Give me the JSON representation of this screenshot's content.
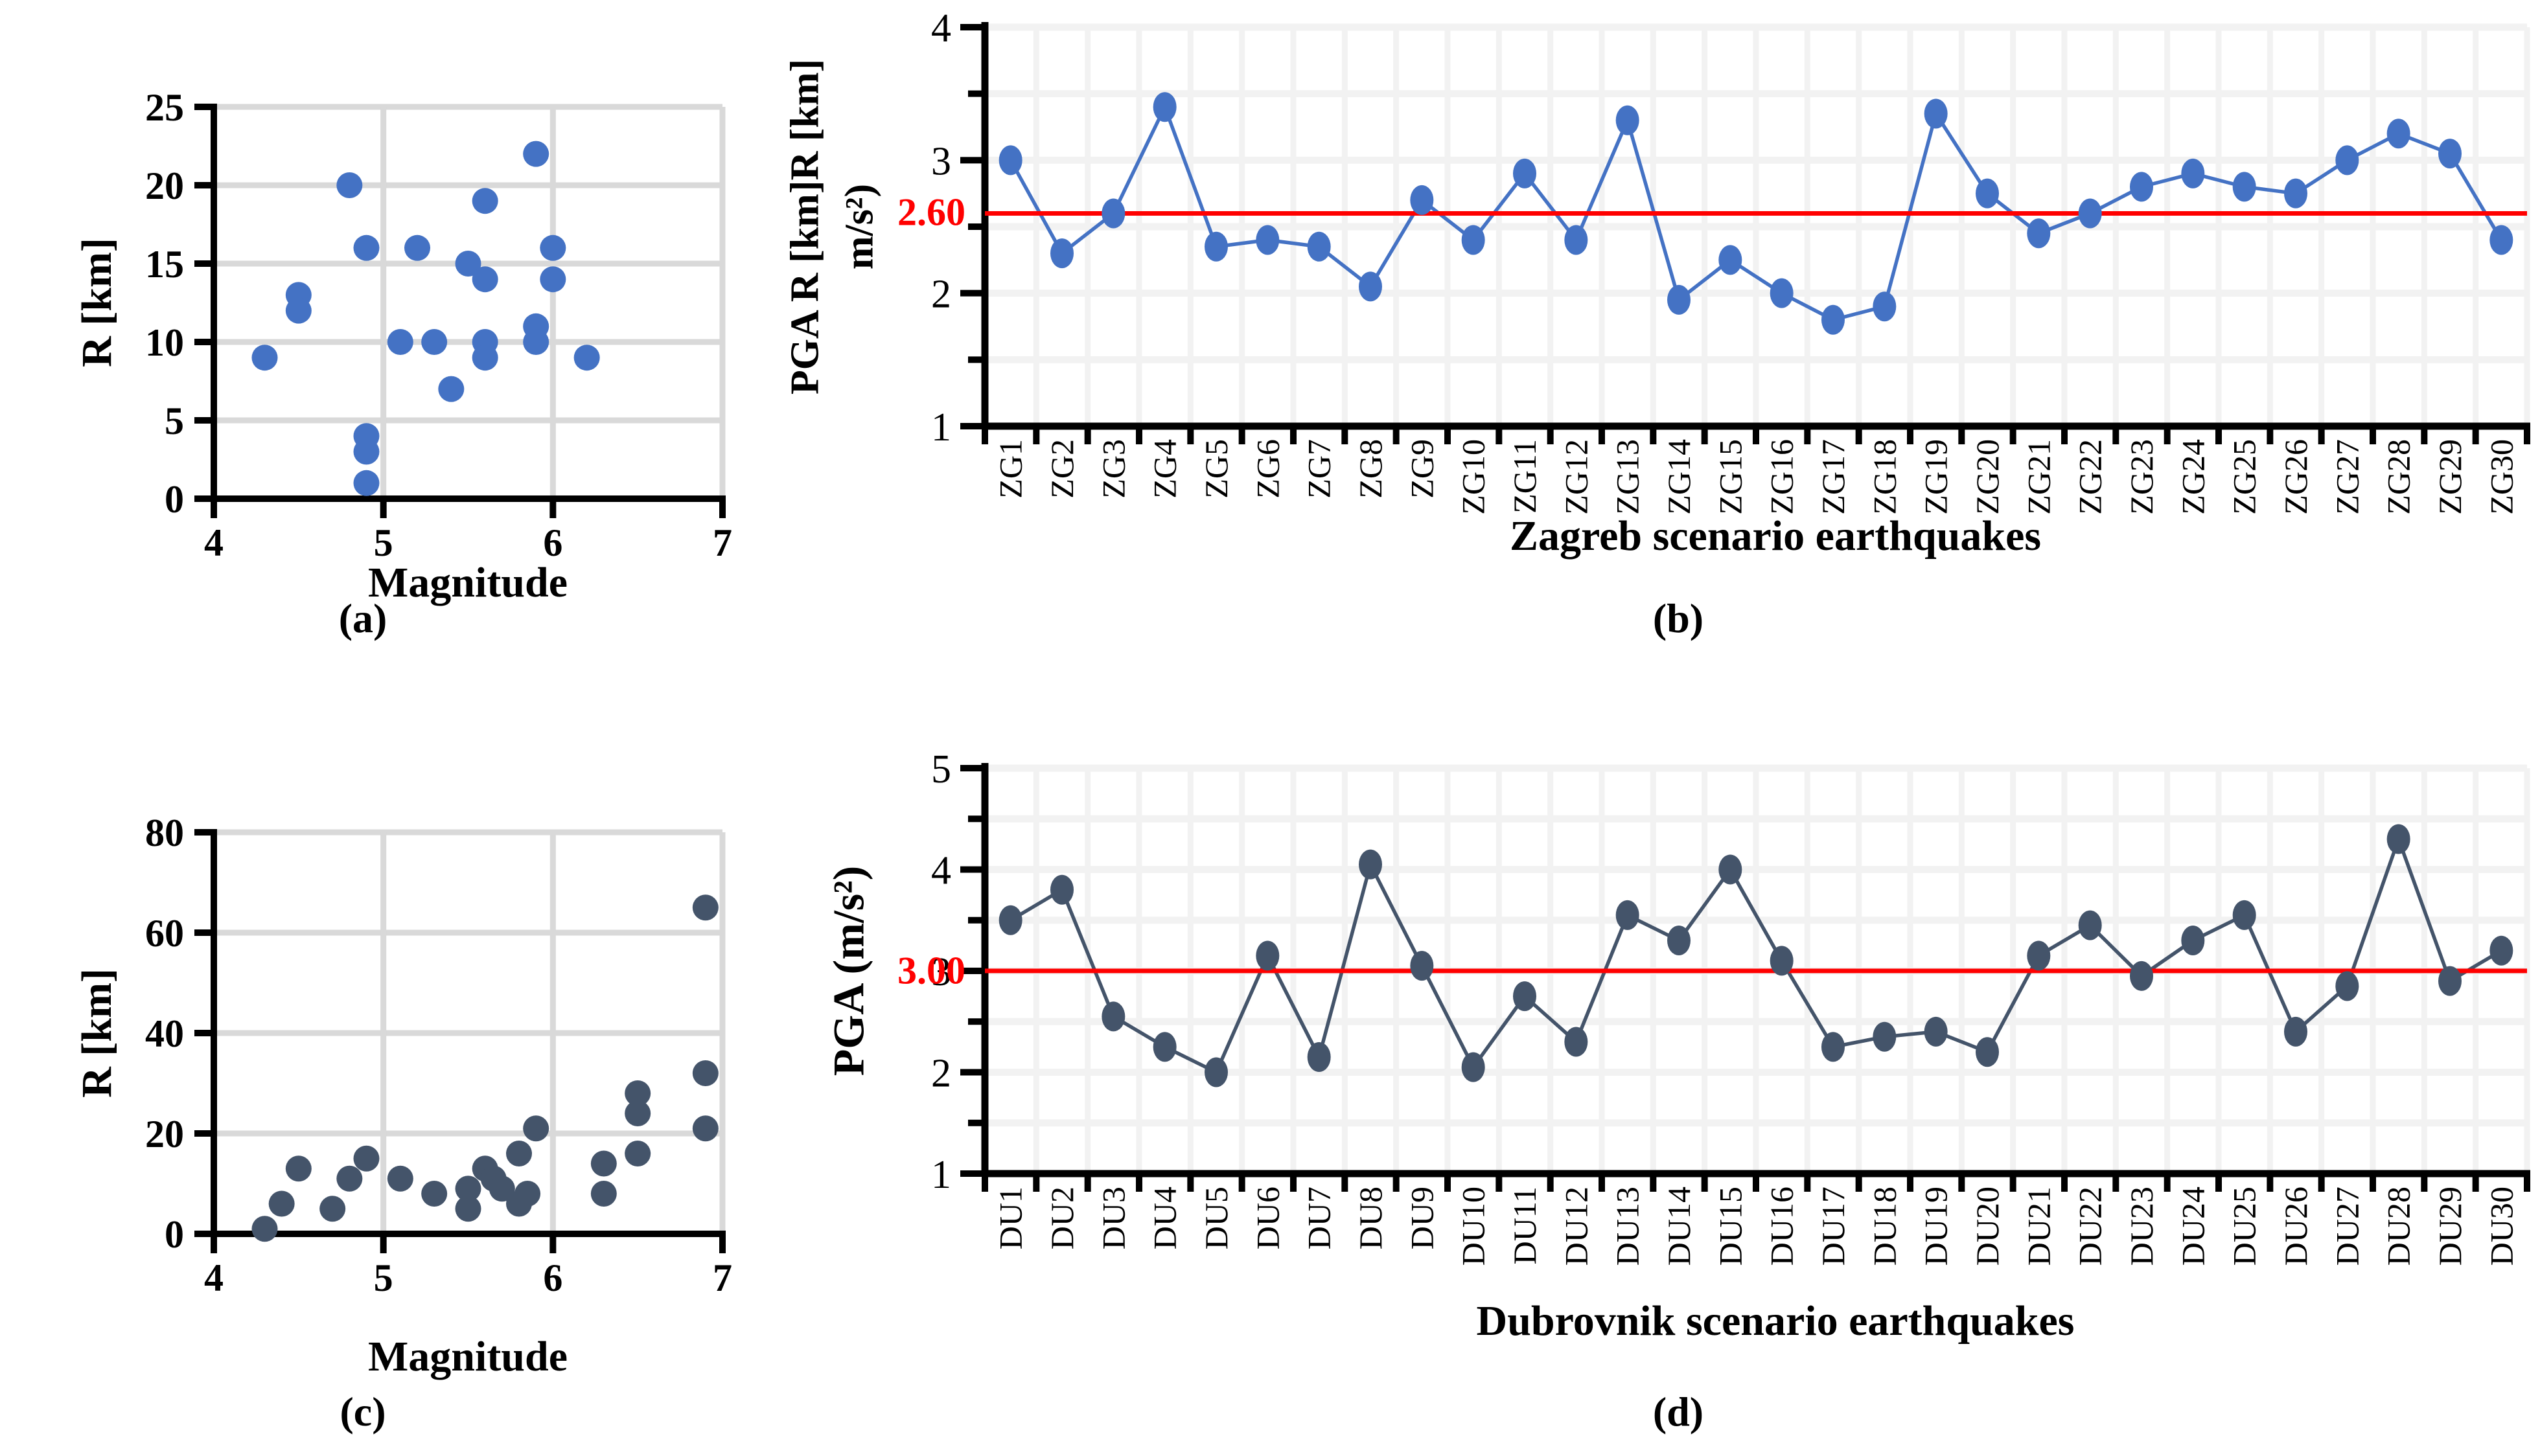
{
  "colors": {
    "blue": "#4472C4",
    "dark": "#44546A",
    "red": "#FF0000",
    "grid_scatter": "#D9D9D9",
    "grid_line": "#F2F2F2",
    "axis": "#000000"
  },
  "chart_data": [
    {
      "id": "a",
      "type": "scatter",
      "caption": "(a)",
      "xlabel": "Magnitude",
      "ylabel": "R [km]",
      "xlim": [
        4,
        7
      ],
      "ylim": [
        0,
        25
      ],
      "xticks": [
        4,
        5,
        6,
        7
      ],
      "yticks": [
        0,
        5,
        10,
        15,
        20,
        25
      ],
      "grid": "on",
      "marker_color": "#4472C4",
      "points": [
        [
          4.3,
          9
        ],
        [
          4.5,
          13
        ],
        [
          4.5,
          12
        ],
        [
          4.8,
          20
        ],
        [
          4.9,
          16
        ],
        [
          4.9,
          4
        ],
        [
          4.9,
          3
        ],
        [
          4.9,
          1
        ],
        [
          5.1,
          10
        ],
        [
          5.2,
          16
        ],
        [
          5.3,
          10
        ],
        [
          5.4,
          7
        ],
        [
          5.5,
          15
        ],
        [
          5.6,
          19
        ],
        [
          5.6,
          14
        ],
        [
          5.6,
          10
        ],
        [
          5.6,
          9
        ],
        [
          5.9,
          22
        ],
        [
          5.9,
          11
        ],
        [
          5.9,
          10
        ],
        [
          6.0,
          16
        ],
        [
          6.0,
          14
        ],
        [
          6.2,
          9
        ]
      ]
    },
    {
      "id": "b",
      "type": "line",
      "caption": "(b)",
      "xlabel": "Zagreb scenario earthquakes",
      "ylabel_line1": "PGA R [km]R [km]",
      "ylabel_line2": "m/s²)",
      "ylim": [
        1,
        4
      ],
      "yticks": [
        1,
        2,
        3,
        4
      ],
      "grid": "on",
      "line_color": "#4472C4",
      "threshold": 2.6,
      "threshold_label": "2.60",
      "categories": [
        "ZG1",
        "ZG2",
        "ZG3",
        "ZG4",
        "ZG5",
        "ZG6",
        "ZG7",
        "ZG8",
        "ZG9",
        "ZG10",
        "ZG11",
        "ZG12",
        "ZG13",
        "ZG14",
        "ZG15",
        "ZG16",
        "ZG17",
        "ZG18",
        "ZG19",
        "ZG20",
        "ZG21",
        "ZG22",
        "ZG23",
        "ZG24",
        "ZG25",
        "ZG26",
        "ZG27",
        "ZG28",
        "ZG29",
        "ZG30"
      ],
      "values": [
        3.0,
        2.3,
        2.6,
        3.4,
        2.35,
        2.4,
        2.35,
        2.05,
        2.7,
        2.4,
        2.9,
        2.4,
        3.3,
        1.95,
        2.25,
        2.0,
        1.8,
        1.9,
        3.35,
        2.75,
        2.45,
        2.6,
        2.8,
        2.9,
        2.8,
        2.75,
        3.0,
        3.2,
        3.05,
        2.4
      ]
    },
    {
      "id": "c",
      "type": "scatter",
      "caption": "(c)",
      "xlabel": "Magnitude",
      "ylabel": "R [km]",
      "xlim": [
        4,
        7
      ],
      "ylim": [
        0,
        80
      ],
      "xticks": [
        4,
        5,
        6,
        7
      ],
      "yticks": [
        0,
        20,
        40,
        60,
        80
      ],
      "grid": "on",
      "marker_color": "#44546A",
      "points": [
        [
          4.3,
          1
        ],
        [
          4.4,
          6
        ],
        [
          4.5,
          13
        ],
        [
          4.7,
          5
        ],
        [
          4.8,
          11
        ],
        [
          4.9,
          15
        ],
        [
          5.1,
          11
        ],
        [
          5.3,
          8
        ],
        [
          5.5,
          9
        ],
        [
          5.5,
          5
        ],
        [
          5.6,
          13
        ],
        [
          5.65,
          11
        ],
        [
          5.7,
          9
        ],
        [
          5.8,
          16
        ],
        [
          5.8,
          6
        ],
        [
          5.85,
          8
        ],
        [
          5.9,
          21
        ],
        [
          6.3,
          14
        ],
        [
          6.3,
          8
        ],
        [
          6.5,
          28
        ],
        [
          6.5,
          24
        ],
        [
          6.5,
          16
        ],
        [
          6.9,
          65
        ],
        [
          6.9,
          32
        ],
        [
          6.9,
          21
        ]
      ]
    },
    {
      "id": "d",
      "type": "line",
      "caption": "(d)",
      "xlabel": "Dubrovnik scenario earthquakes",
      "ylabel": "PGA (m/s²)",
      "ylim": [
        1,
        5
      ],
      "yticks": [
        1,
        2,
        3,
        4,
        5
      ],
      "grid": "on",
      "line_color": "#44546A",
      "threshold": 3.0,
      "threshold_label": "3.00",
      "categories": [
        "DU1",
        "DU2",
        "DU3",
        "DU4",
        "DU5",
        "DU6",
        "DU7",
        "DU8",
        "DU9",
        "DU10",
        "DU11",
        "DU12",
        "DU13",
        "DU14",
        "DU15",
        "DU16",
        "DU17",
        "DU18",
        "DU19",
        "DU20",
        "DU21",
        "DU22",
        "DU23",
        "DU24",
        "DU25",
        "DU26",
        "DU27",
        "DU28",
        "DU29",
        "DU30"
      ],
      "values": [
        3.5,
        3.8,
        2.55,
        2.25,
        2.0,
        3.15,
        2.15,
        4.05,
        3.05,
        2.05,
        2.75,
        2.3,
        3.55,
        3.3,
        4.0,
        3.1,
        2.25,
        2.35,
        2.4,
        2.2,
        3.15,
        3.45,
        2.95,
        3.3,
        3.55,
        2.4,
        2.85,
        4.3,
        2.9,
        3.2
      ]
    }
  ]
}
